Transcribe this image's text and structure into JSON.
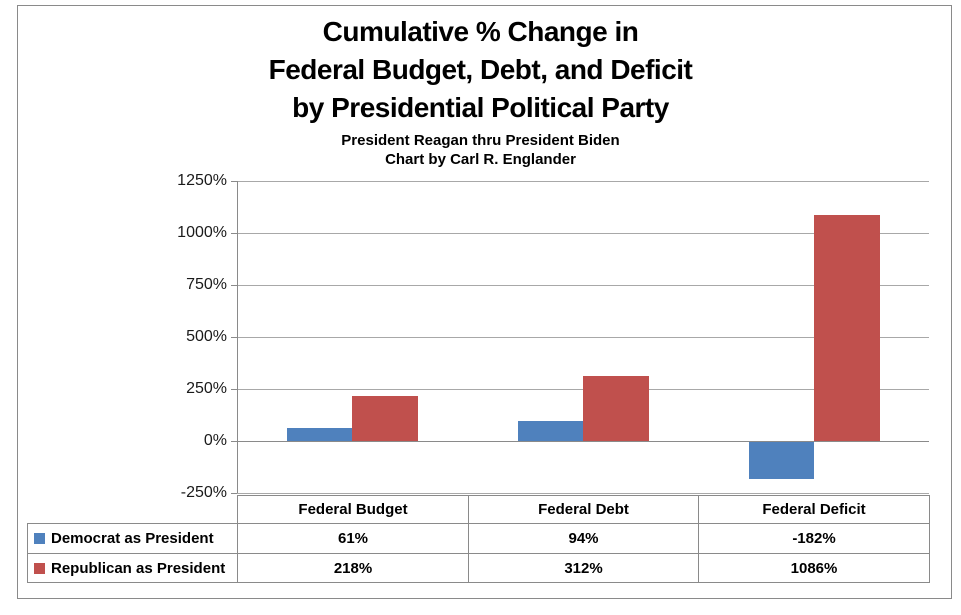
{
  "title": {
    "line1": "Cumulative % Change in",
    "line2": "Federal Budget, Debt, and Deficit",
    "line3": "by Presidential Political Party",
    "subtitle1": "President Reagan thru President Biden",
    "subtitle2": "Chart by Carl R. Englander"
  },
  "colors": {
    "democrat": "#4F81BD",
    "republican": "#C0504D",
    "gridline": "#A8A8A8",
    "axis": "#8A8A8A",
    "text": "#000000"
  },
  "chart_data": {
    "type": "bar",
    "title": "Cumulative % Change in Federal Budget, Debt, and Deficit by Presidential Political Party",
    "subtitle": "President Reagan thru President Biden; Chart by Carl R. Englander",
    "categories": [
      "Federal Budget",
      "Federal Debt",
      "Federal Deficit"
    ],
    "series": [
      {
        "name": "Democrat as President",
        "color": "#4F81BD",
        "values": [
          61,
          94,
          -182
        ]
      },
      {
        "name": "Republican as President",
        "color": "#C0504D",
        "values": [
          218,
          312,
          1086
        ]
      }
    ],
    "xlabel": "",
    "ylabel": "",
    "ylim": [
      -250,
      1250
    ],
    "ytick_step": 250,
    "yticks": [
      "1250%",
      "1000%",
      "750%",
      "500%",
      "250%",
      "0%",
      "-250%"
    ],
    "grid": true,
    "legend_position": "data-table-left",
    "data_table": {
      "rows": [
        {
          "label": "Democrat as President",
          "display_values": [
            "61%",
            "94%",
            "-182%"
          ]
        },
        {
          "label": "Republican as President",
          "display_values": [
            "218%",
            "312%",
            "1086%"
          ]
        }
      ]
    }
  }
}
